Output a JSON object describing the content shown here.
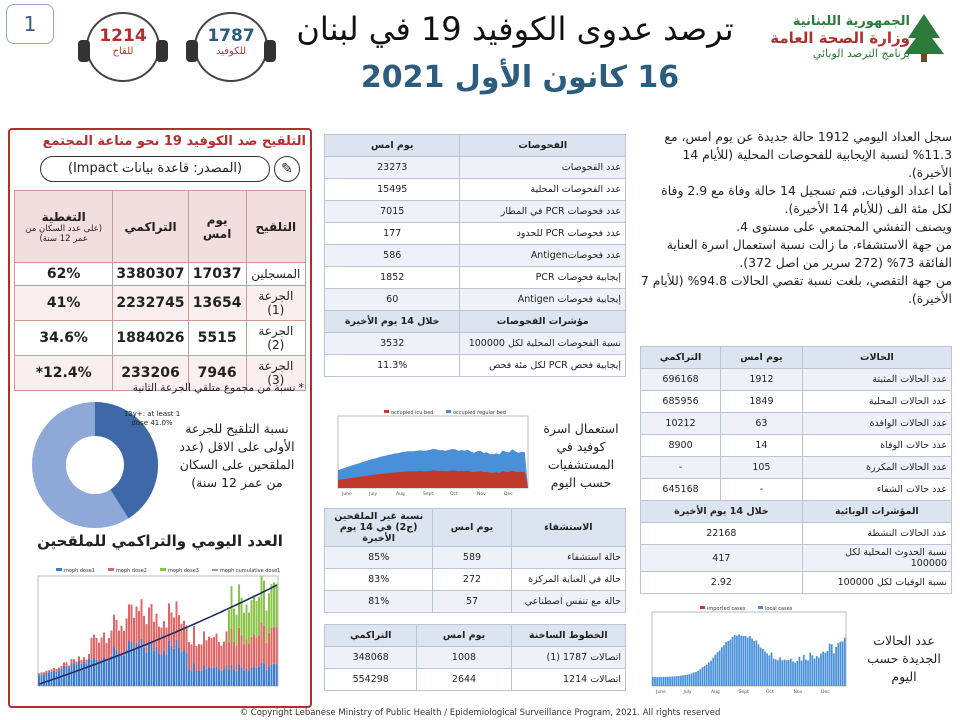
{
  "page_number": "1",
  "header": {
    "title": "ترصد عدوى الكوفيد 19 في لبنان",
    "date": "16 كانون الأول 2021",
    "badge_covid": {
      "value": "1787",
      "label": "للكوفيد"
    },
    "badge_vaccine": {
      "value": "1214",
      "label": "للقاح"
    },
    "logo": {
      "line1": "الجمهورية اللبنانية",
      "line2": "وزارة الصحة العامة",
      "line3": "برنامج الترصد الوبائي"
    }
  },
  "summary": {
    "p1": "سجل العداد اليومي 1912 حالة جديدة عن يوم امس، مع 11.3% لنسبة الإيجابية للفحوصات المحلية (للأيام 14 الأخيرة).",
    "p2": "أما اعداد الوفيات، فتم تسجيل 14 حالة وفاة مع 2.9 وفاة لكل مئة الف (للأيام 14 الأخيرة).",
    "p3": "ويصنف التفشي المجتمعي على مستوى 4.",
    "p4": "من جهة الاستشفاء، ما زالت نسبة استعمال اسرة العناية الفائقة 73% (272 سرير من اصل 372).",
    "p5": "من جهة التقصي، بلغت نسبة تقصي الحالات 94.8% (للأيام 7 الأخيرة)."
  },
  "vaccination": {
    "title": "التلقيح ضد الكوفيد 19 نحو مناعة المجتمع",
    "source": "(المصدر: قاعدة بيانات Impact)",
    "headers": [
      "التلقيح",
      "يوم امس",
      "التراكمي",
      "التغطية",
      "(على عدد السكان من عمر 12 سنة)"
    ],
    "rows": [
      {
        "label": "المسجلين",
        "yesterday": "17037",
        "cumulative": "3380307",
        "coverage": "62%"
      },
      {
        "label": "الجرعة (1)",
        "yesterday": "13654",
        "cumulative": "2232745",
        "coverage": "41%"
      },
      {
        "label": "الجرعة (2)",
        "yesterday": "5515",
        "cumulative": "1884026",
        "coverage": "34.6%"
      },
      {
        "label": "الجرعة (3)",
        "yesterday": "7946",
        "cumulative": "233206",
        "coverage": "12.4%*"
      }
    ],
    "footnote": "* نسبة من مجموع متلقي الجرعة الثانية",
    "donut_caption": "نسبة التلقيح للجرعة الأولى على الاقل (عدد الملقحين على السكان من عمر 12 سنة)",
    "donut_label": "12y+: at least 1 dose 41.0%",
    "chart_title": "العدد اليومي والتراكمي للملقحين"
  },
  "tests": {
    "headers": [
      "الفحوصات",
      "يوم امس"
    ],
    "rows": [
      {
        "label": "عدد الفحوصات",
        "value": "23273"
      },
      {
        "label": "عدد الفحوصات المحلية",
        "value": "15495"
      },
      {
        "label": "عدد فحوصات PCR في المطار",
        "value": "7015"
      },
      {
        "label": "عدد فحوصات PCR للحدود",
        "value": "177"
      },
      {
        "label": "عدد فحوصاتAntigen",
        "value": "586"
      },
      {
        "label": "إيجابية فحوصات PCR",
        "value": "1852"
      },
      {
        "label": "إيجابية فحوصات Antigen",
        "value": "60"
      }
    ],
    "ind_headers": [
      "مؤشرات الفحوصات",
      "خلال 14 يوم الأخيرة"
    ],
    "ind_rows": [
      {
        "label": "نسبة الفحوصات المحلية لكل 100000",
        "value": "3532"
      },
      {
        "label": "إيجابية فحص PCR لكل مئة فحص",
        "value": "11.3%"
      }
    ]
  },
  "cases": {
    "headers": [
      "الحالات",
      "يوم امس",
      "التراكمي"
    ],
    "rows": [
      {
        "label": "عدد الحالات المثبتة",
        "yesterday": "1912",
        "cumulative": "696168"
      },
      {
        "label": "عدد الحالات المحلية",
        "yesterday": "1849",
        "cumulative": "685956"
      },
      {
        "label": "عدد الحالات الوافدة",
        "yesterday": "63",
        "cumulative": "10212"
      },
      {
        "label": "عدد حالات الوفاة",
        "yesterday": "14",
        "cumulative": "8900"
      },
      {
        "label": "عدد الحالات المكررة",
        "yesterday": "105",
        "cumulative": "-"
      },
      {
        "label": "عدد حالات الشفاء",
        "yesterday": "-",
        "cumulative": "645168"
      }
    ],
    "ind_headers": [
      "المؤشرات الوبائية",
      "خلال 14 يوم الأخيرة"
    ],
    "ind_rows": [
      {
        "label": "عدد الحالات النشطة",
        "value": "22168"
      },
      {
        "label": "نسبة الحدوث المحلية لكل 100000",
        "value": "417"
      },
      {
        "label": "نسبة الوفيات لكل 100000",
        "value": "2.92"
      }
    ]
  },
  "hosp_chart_caption": "استعمال اسرة كوفيد في المستشفيات حسب اليوم",
  "hosp_legend": [
    "occupied icu bed",
    "occupied regular bed"
  ],
  "hospital": {
    "headers": [
      "الاستشفاء",
      "يوم امس",
      "نسبة غير الملقحين (ج2) في 14 يوم الأخيرة"
    ],
    "rows": [
      {
        "label": "حالة استشفاء",
        "yesterday": "589",
        "pct": "85%"
      },
      {
        "label": "حالة في العناية المركزة",
        "yesterday": "272",
        "pct": "83%"
      },
      {
        "label": "حالة مع تنفس اصطناعي",
        "yesterday": "57",
        "pct": "81%"
      }
    ]
  },
  "hotlines": {
    "headers": [
      "الخطوط الساخنة",
      "يوم امس",
      "التراكمي"
    ],
    "rows": [
      {
        "label": "اتصالات 1787 (1)",
        "yesterday": "1008",
        "cumulative": "348068"
      },
      {
        "label": "اتصالات 1214",
        "yesterday": "2644",
        "cumulative": "554298"
      }
    ]
  },
  "cases_chart_caption": "عدد الحالات الجديدة حسب اليوم",
  "cases_legend": [
    "imported cases",
    "local cases"
  ],
  "vacc_legend": [
    "moph dose1",
    "moph dose2",
    "moph dose3",
    "moph cumulative dose1"
  ],
  "months": [
    "June",
    "July",
    "Aug",
    "Sept",
    "Oct",
    "Nov",
    "Dec"
  ],
  "colors": {
    "accent_red": "#b03030",
    "navy": "#2c5c7e",
    "bed_icu": "#c0392b",
    "bed_regular": "#4a90d9"
  },
  "copyright": "© Copyright Lebanese Ministry of Public Health / Epidemiological Surveillance Program, 2021. All rights reserved"
}
